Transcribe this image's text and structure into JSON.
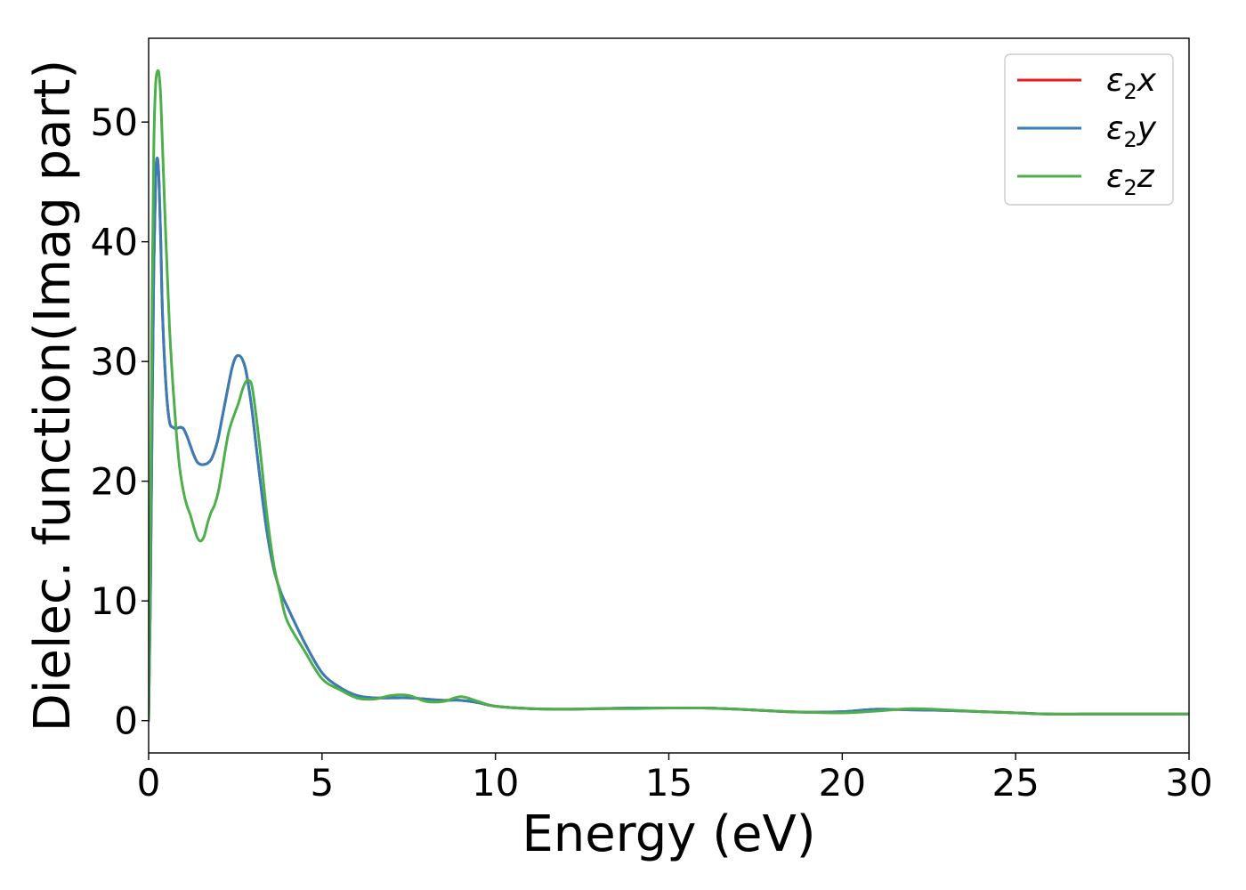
{
  "chart_data": {
    "type": "line",
    "title": "",
    "xlabel": "Energy (eV)",
    "ylabel": "Dielec. function(Imag part)",
    "xlim": [
      0,
      30
    ],
    "ylim": [
      -2.7,
      57
    ],
    "xticks": [
      0,
      5,
      10,
      15,
      20,
      25,
      30
    ],
    "xtick_labels": [
      "0",
      "5",
      "10",
      "15",
      "20",
      "25",
      "30"
    ],
    "yticks": [
      0,
      10,
      20,
      30,
      40,
      50
    ],
    "ytick_labels": [
      "0",
      "10",
      "20",
      "30",
      "40",
      "50"
    ],
    "grid": false,
    "legend_position": "top-right",
    "series": [
      {
        "name": "ε₂x",
        "legend_var": "x",
        "color": "#e41a1c",
        "x": [
          0,
          0.05,
          0.1,
          0.15,
          0.2,
          0.25,
          0.3,
          0.35,
          0.4,
          0.5,
          0.6,
          0.7,
          0.8,
          0.9,
          1.0,
          1.1,
          1.2,
          1.3,
          1.4,
          1.5,
          1.6,
          1.7,
          1.8,
          1.9,
          2.0,
          2.1,
          2.2,
          2.3,
          2.4,
          2.5,
          2.6,
          2.7,
          2.8,
          2.9,
          3.0,
          3.2,
          3.4,
          3.6,
          3.8,
          4.0,
          4.5,
          5.0,
          5.5,
          6.0,
          6.5,
          7.0,
          7.5,
          8.0,
          8.5,
          9.0,
          9.5,
          10.0,
          11.0,
          12.0,
          13.0,
          14.0,
          15.0,
          16.0,
          17.0,
          18.0,
          19.0,
          20.0,
          21.0,
          22.0,
          23.0,
          24.0,
          25.0,
          26.0,
          27.0,
          28.0,
          29.0,
          30.0
        ],
        "y": [
          0,
          10,
          25,
          38,
          45,
          47,
          45,
          40,
          34,
          28,
          25,
          24.5,
          24.4,
          24.5,
          24.4,
          23.8,
          23.0,
          22.2,
          21.6,
          21.4,
          21.4,
          21.5,
          21.8,
          22.5,
          23.5,
          25.0,
          26.5,
          28.0,
          29.4,
          30.3,
          30.5,
          30.2,
          29.3,
          27.6,
          25.5,
          20.5,
          16.0,
          12.8,
          10.8,
          9.5,
          6.5,
          4.0,
          2.8,
          2.1,
          1.9,
          1.9,
          1.9,
          1.8,
          1.7,
          1.7,
          1.5,
          1.2,
          1.0,
          0.95,
          1.0,
          1.05,
          1.05,
          1.05,
          0.95,
          0.8,
          0.7,
          0.75,
          0.95,
          0.9,
          0.85,
          0.75,
          0.65,
          0.55,
          0.55,
          0.55,
          0.55,
          0.55
        ]
      },
      {
        "name": "ε₂y",
        "legend_var": "y",
        "color": "#377eb8",
        "x": [
          0,
          0.05,
          0.1,
          0.15,
          0.2,
          0.25,
          0.3,
          0.35,
          0.4,
          0.5,
          0.6,
          0.7,
          0.8,
          0.9,
          1.0,
          1.1,
          1.2,
          1.3,
          1.4,
          1.5,
          1.6,
          1.7,
          1.8,
          1.9,
          2.0,
          2.1,
          2.2,
          2.3,
          2.4,
          2.5,
          2.6,
          2.7,
          2.8,
          2.9,
          3.0,
          3.2,
          3.4,
          3.6,
          3.8,
          4.0,
          4.5,
          5.0,
          5.5,
          6.0,
          6.5,
          7.0,
          7.5,
          8.0,
          8.5,
          9.0,
          9.5,
          10.0,
          11.0,
          12.0,
          13.0,
          14.0,
          15.0,
          16.0,
          17.0,
          18.0,
          19.0,
          20.0,
          21.0,
          22.0,
          23.0,
          24.0,
          25.0,
          26.0,
          27.0,
          28.0,
          29.0,
          30.0
        ],
        "y": [
          0,
          10,
          25,
          38,
          45,
          47,
          45,
          40,
          34,
          28,
          25,
          24.5,
          24.4,
          24.5,
          24.4,
          23.8,
          23.0,
          22.2,
          21.6,
          21.4,
          21.4,
          21.5,
          21.8,
          22.5,
          23.5,
          25.0,
          26.5,
          28.0,
          29.4,
          30.3,
          30.5,
          30.2,
          29.3,
          27.6,
          25.5,
          20.5,
          16.0,
          12.8,
          10.8,
          9.5,
          6.5,
          4.0,
          2.8,
          2.1,
          1.9,
          1.9,
          1.9,
          1.8,
          1.7,
          1.7,
          1.5,
          1.2,
          1.0,
          0.95,
          1.0,
          1.05,
          1.05,
          1.05,
          0.95,
          0.8,
          0.7,
          0.75,
          0.95,
          0.9,
          0.85,
          0.75,
          0.65,
          0.55,
          0.55,
          0.55,
          0.55,
          0.55
        ]
      },
      {
        "name": "ε₂z",
        "legend_var": "z",
        "color": "#4daf4a",
        "x": [
          0,
          0.05,
          0.1,
          0.15,
          0.2,
          0.25,
          0.3,
          0.35,
          0.4,
          0.5,
          0.6,
          0.7,
          0.8,
          0.9,
          1.0,
          1.1,
          1.2,
          1.3,
          1.4,
          1.5,
          1.6,
          1.7,
          1.8,
          1.9,
          2.0,
          2.1,
          2.2,
          2.3,
          2.4,
          2.5,
          2.6,
          2.7,
          2.8,
          2.9,
          3.0,
          3.2,
          3.4,
          3.6,
          3.8,
          4.0,
          4.5,
          5.0,
          5.5,
          6.0,
          6.5,
          7.0,
          7.5,
          8.0,
          8.5,
          9.0,
          9.5,
          10.0,
          11.0,
          12.0,
          13.0,
          14.0,
          15.0,
          16.0,
          17.0,
          18.0,
          19.0,
          20.0,
          21.0,
          22.0,
          23.0,
          24.0,
          25.0,
          26.0,
          27.0,
          28.0,
          29.0,
          30.0
        ],
        "y": [
          0,
          15,
          35,
          48,
          53,
          54.2,
          54,
          52,
          48,
          40,
          33,
          28,
          24,
          21,
          19.2,
          18,
          17.2,
          16.2,
          15.3,
          15.0,
          15.4,
          16.5,
          17.4,
          18.0,
          19.0,
          20.6,
          22.4,
          24.0,
          25.0,
          25.8,
          26.6,
          27.6,
          28.3,
          28.4,
          27.6,
          23.0,
          17.5,
          13.2,
          10.5,
          8.3,
          5.8,
          3.5,
          2.6,
          1.9,
          1.8,
          2.1,
          2.1,
          1.6,
          1.6,
          2.0,
          1.6,
          1.2,
          1.0,
          0.95,
          1.0,
          1.0,
          1.05,
          1.05,
          0.95,
          0.8,
          0.7,
          0.65,
          0.8,
          1.0,
          0.9,
          0.75,
          0.65,
          0.55,
          0.55,
          0.55,
          0.55,
          0.55
        ]
      }
    ]
  }
}
